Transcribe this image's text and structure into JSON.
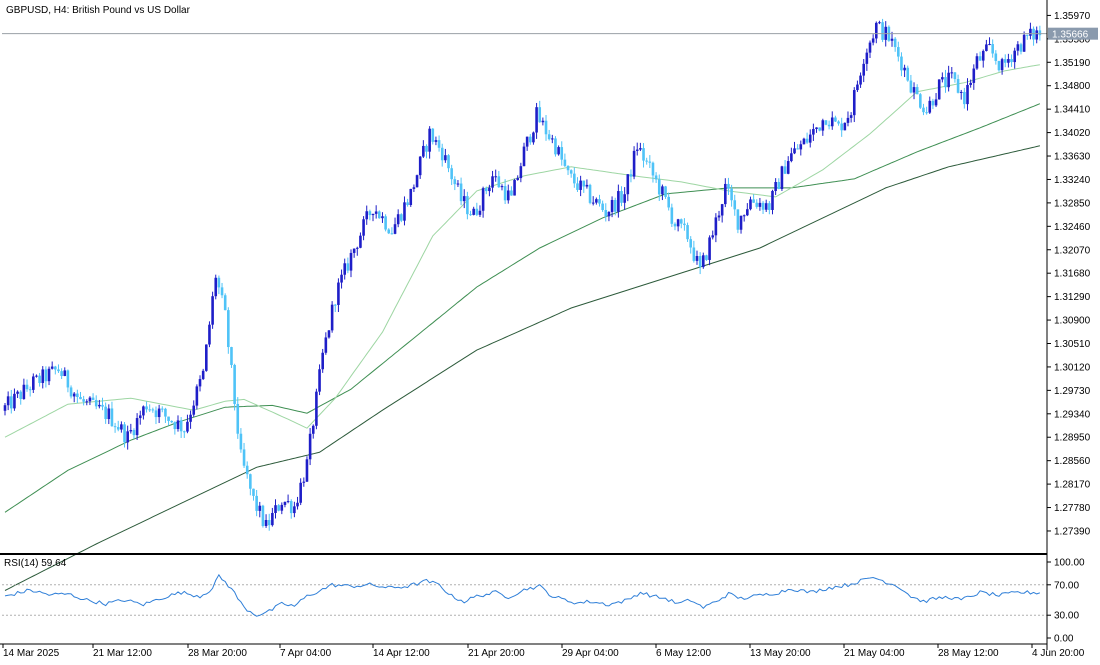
{
  "window": {
    "title": "GBPUSD, H4:  British Pound vs US Dollar"
  },
  "colors": {
    "background": "#ffffff",
    "axis": "#000000",
    "bull_candle": "#1e1ec8",
    "bear_candle": "#4fc3f7",
    "ma_fast": "#9ed6a3",
    "ma_mid": "#3f8f53",
    "ma_slow": "#2c5a3a",
    "rsi_line": "#2f7fd8",
    "price_tag_bg": "#8a9aad",
    "price_line": "#9aa0a6",
    "rsi_level": "#b0b0b0"
  },
  "rsi_panel": {
    "label": "RSI(14) 59.64",
    "levels": [
      "100.00",
      "70.00",
      "30.00",
      "0.00"
    ]
  },
  "chart_data": {
    "type": "candlestick",
    "symbol": "GBPUSD",
    "timeframe": "H4",
    "title": "GBPUSD, H4:  British Pound vs US Dollar",
    "current_price": "1.35666",
    "current_price_value": 1.35666,
    "y_ticks": [
      "1.35970",
      "1.35580",
      "1.35190",
      "1.34800",
      "1.34410",
      "1.34020",
      "1.33630",
      "1.33240",
      "1.32850",
      "1.32460",
      "1.32070",
      "1.31680",
      "1.31290",
      "1.30900",
      "1.30510",
      "1.30120",
      "1.29730",
      "1.29340",
      "1.28950",
      "1.28560",
      "1.28170",
      "1.27780",
      "1.27390"
    ],
    "ylim": [
      1.2704,
      1.3616
    ],
    "x_ticks": [
      "14 Mar 2025",
      "21 Mar 12:00",
      "28 Mar 20:00",
      "7 Apr 04:00",
      "14 Apr 12:00",
      "21 Apr 20:00",
      "29 Apr 04:00",
      "6 May 12:00",
      "13 May 20:00",
      "21 May 04:00",
      "28 May 12:00",
      "4 Jun 20:00"
    ],
    "price_waypoints": [
      [
        0,
        1.2939
      ],
      [
        10,
        1.2985
      ],
      [
        18,
        1.3008
      ],
      [
        25,
        1.2955
      ],
      [
        34,
        1.2932
      ],
      [
        40,
        1.2895
      ],
      [
        46,
        1.295
      ],
      [
        52,
        1.293
      ],
      [
        58,
        1.291
      ],
      [
        64,
        1.3
      ],
      [
        68,
        1.3165
      ],
      [
        71,
        1.3095
      ],
      [
        76,
        1.286
      ],
      [
        80,
        1.279
      ],
      [
        84,
        1.2745
      ],
      [
        89,
        1.279
      ],
      [
        93,
        1.278
      ],
      [
        97,
        1.285
      ],
      [
        102,
        1.303
      ],
      [
        106,
        1.313
      ],
      [
        112,
        1.321
      ],
      [
        118,
        1.328
      ],
      [
        124,
        1.324
      ],
      [
        130,
        1.33
      ],
      [
        136,
        1.34
      ],
      [
        140,
        1.337
      ],
      [
        146,
        1.329
      ],
      [
        150,
        1.3265
      ],
      [
        156,
        1.333
      ],
      [
        162,
        1.329
      ],
      [
        166,
        1.337
      ],
      [
        170,
        1.343
      ],
      [
        176,
        1.338
      ],
      [
        180,
        1.333
      ],
      [
        186,
        1.33
      ],
      [
        192,
        1.327
      ],
      [
        198,
        1.33
      ],
      [
        202,
        1.338
      ],
      [
        206,
        1.334
      ],
      [
        210,
        1.33
      ],
      [
        214,
        1.325
      ],
      [
        218,
        1.323
      ],
      [
        222,
        1.317
      ],
      [
        226,
        1.3235
      ],
      [
        230,
        1.331
      ],
      [
        234,
        1.3255
      ],
      [
        238,
        1.329
      ],
      [
        244,
        1.328
      ],
      [
        250,
        1.336
      ],
      [
        256,
        1.339
      ],
      [
        262,
        1.343
      ],
      [
        266,
        1.341
      ],
      [
        270,
        1.344
      ],
      [
        274,
        1.353
      ],
      [
        278,
        1.358
      ],
      [
        282,
        1.356
      ],
      [
        286,
        1.352
      ],
      [
        290,
        1.347
      ],
      [
        294,
        1.344
      ],
      [
        298,
        1.348
      ],
      [
        302,
        1.349
      ],
      [
        306,
        1.346
      ],
      [
        310,
        1.352
      ],
      [
        314,
        1.354
      ],
      [
        318,
        1.351
      ],
      [
        322,
        1.354
      ],
      [
        326,
        1.356
      ],
      [
        329,
        1.3567
      ]
    ],
    "ma_fast_waypoints": [
      [
        0,
        1.2895
      ],
      [
        20,
        1.295
      ],
      [
        40,
        1.296
      ],
      [
        60,
        1.294
      ],
      [
        70,
        1.2955
      ],
      [
        76,
        1.2958
      ],
      [
        90,
        1.2925
      ],
      [
        96,
        1.291
      ],
      [
        105,
        1.296
      ],
      [
        120,
        1.307
      ],
      [
        136,
        1.323
      ],
      [
        150,
        1.3305
      ],
      [
        165,
        1.333
      ],
      [
        180,
        1.3345
      ],
      [
        200,
        1.333
      ],
      [
        215,
        1.332
      ],
      [
        230,
        1.3305
      ],
      [
        245,
        1.3295
      ],
      [
        260,
        1.334
      ],
      [
        275,
        1.34
      ],
      [
        290,
        1.347
      ],
      [
        305,
        1.3485
      ],
      [
        318,
        1.3505
      ],
      [
        329,
        1.3515
      ]
    ],
    "ma_mid_waypoints": [
      [
        0,
        1.277
      ],
      [
        20,
        1.284
      ],
      [
        40,
        1.289
      ],
      [
        55,
        1.292
      ],
      [
        70,
        1.2945
      ],
      [
        85,
        1.2948
      ],
      [
        96,
        1.2935
      ],
      [
        110,
        1.2975
      ],
      [
        130,
        1.306
      ],
      [
        150,
        1.3145
      ],
      [
        170,
        1.321
      ],
      [
        190,
        1.326
      ],
      [
        210,
        1.33
      ],
      [
        230,
        1.331
      ],
      [
        250,
        1.331
      ],
      [
        270,
        1.3325
      ],
      [
        290,
        1.337
      ],
      [
        310,
        1.341
      ],
      [
        329,
        1.345
      ]
    ],
    "ma_slow_waypoints": [
      [
        0,
        1.264
      ],
      [
        30,
        1.272
      ],
      [
        60,
        1.2795
      ],
      [
        80,
        1.2845
      ],
      [
        100,
        1.287
      ],
      [
        120,
        1.294
      ],
      [
        150,
        1.304
      ],
      [
        180,
        1.311
      ],
      [
        210,
        1.316
      ],
      [
        240,
        1.321
      ],
      [
        260,
        1.326
      ],
      [
        280,
        1.331
      ],
      [
        300,
        1.3345
      ],
      [
        329,
        1.338
      ]
    ],
    "rsi_waypoints": [
      [
        0,
        55
      ],
      [
        8,
        63
      ],
      [
        14,
        57
      ],
      [
        20,
        58
      ],
      [
        26,
        50
      ],
      [
        32,
        45
      ],
      [
        38,
        50
      ],
      [
        44,
        44
      ],
      [
        50,
        53
      ],
      [
        56,
        60
      ],
      [
        62,
        55
      ],
      [
        66,
        65
      ],
      [
        68,
        82
      ],
      [
        72,
        65
      ],
      [
        76,
        40
      ],
      [
        80,
        30
      ],
      [
        84,
        35
      ],
      [
        88,
        45
      ],
      [
        92,
        42
      ],
      [
        96,
        55
      ],
      [
        100,
        62
      ],
      [
        104,
        70
      ],
      [
        110,
        68
      ],
      [
        116,
        70
      ],
      [
        122,
        66
      ],
      [
        128,
        68
      ],
      [
        134,
        75
      ],
      [
        138,
        70
      ],
      [
        142,
        55
      ],
      [
        146,
        48
      ],
      [
        150,
        55
      ],
      [
        156,
        60
      ],
      [
        160,
        54
      ],
      [
        166,
        65
      ],
      [
        170,
        68
      ],
      [
        174,
        55
      ],
      [
        178,
        50
      ],
      [
        182,
        46
      ],
      [
        186,
        48
      ],
      [
        192,
        44
      ],
      [
        198,
        50
      ],
      [
        202,
        60
      ],
      [
        206,
        55
      ],
      [
        210,
        52
      ],
      [
        214,
        45
      ],
      [
        218,
        50
      ],
      [
        222,
        40
      ],
      [
        226,
        48
      ],
      [
        230,
        58
      ],
      [
        234,
        52
      ],
      [
        240,
        56
      ],
      [
        246,
        60
      ],
      [
        250,
        65
      ],
      [
        256,
        60
      ],
      [
        262,
        66
      ],
      [
        268,
        70
      ],
      [
        272,
        75
      ],
      [
        276,
        80
      ],
      [
        280,
        74
      ],
      [
        284,
        68
      ],
      [
        288,
        55
      ],
      [
        292,
        48
      ],
      [
        296,
        52
      ],
      [
        300,
        54
      ],
      [
        304,
        50
      ],
      [
        310,
        60
      ],
      [
        316,
        56
      ],
      [
        322,
        60
      ],
      [
        329,
        59.64
      ]
    ],
    "n_candles": 330
  }
}
